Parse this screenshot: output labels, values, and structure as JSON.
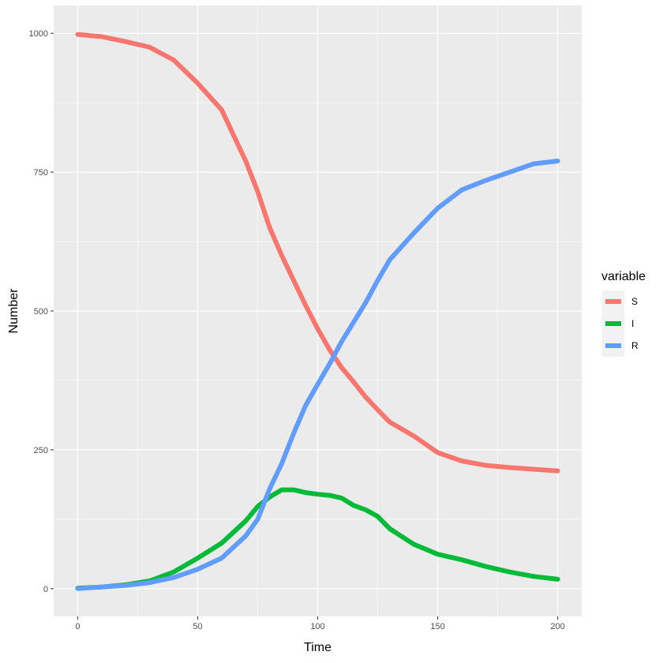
{
  "chart_data": {
    "type": "line",
    "xlabel": "Time",
    "ylabel": "Number",
    "xlim": [
      -10,
      210
    ],
    "ylim": [
      -50,
      1050
    ],
    "x_ticks": [
      0,
      50,
      100,
      150,
      200
    ],
    "y_ticks": [
      0,
      250,
      500,
      750,
      1000
    ],
    "x_tick_labels": [
      "0",
      "50",
      "100",
      "150",
      "200"
    ],
    "y_tick_labels": [
      "0",
      "250",
      "500",
      "750",
      "1000"
    ],
    "grid": true,
    "panel_background": "#ebebeb",
    "legend": {
      "title": "variable",
      "placement": "right"
    },
    "x": [
      0,
      10,
      20,
      30,
      40,
      50,
      60,
      70,
      75,
      80,
      85,
      90,
      95,
      100,
      105,
      110,
      115,
      120,
      125,
      130,
      140,
      150,
      160,
      170,
      180,
      190,
      200
    ],
    "series": [
      {
        "name": "S",
        "color": "#F8766D",
        "values": [
          998,
          994,
          985,
          975,
          952,
          910,
          862,
          770,
          715,
          650,
          600,
          555,
          510,
          468,
          430,
          398,
          372,
          345,
          322,
          300,
          275,
          245,
          230,
          222,
          218,
          215,
          212
        ]
      },
      {
        "name": "I",
        "color": "#00BA38",
        "values": [
          1,
          3,
          7,
          14,
          30,
          55,
          82,
          122,
          148,
          165,
          178,
          178,
          173,
          170,
          168,
          163,
          150,
          142,
          130,
          108,
          80,
          62,
          52,
          40,
          30,
          22,
          17
        ]
      },
      {
        "name": "R",
        "color": "#619CFF",
        "values": [
          0,
          3,
          6,
          11,
          20,
          35,
          55,
          95,
          125,
          180,
          225,
          280,
          330,
          368,
          405,
          445,
          480,
          515,
          555,
          592,
          640,
          685,
          718,
          735,
          750,
          765,
          770
        ]
      }
    ]
  }
}
